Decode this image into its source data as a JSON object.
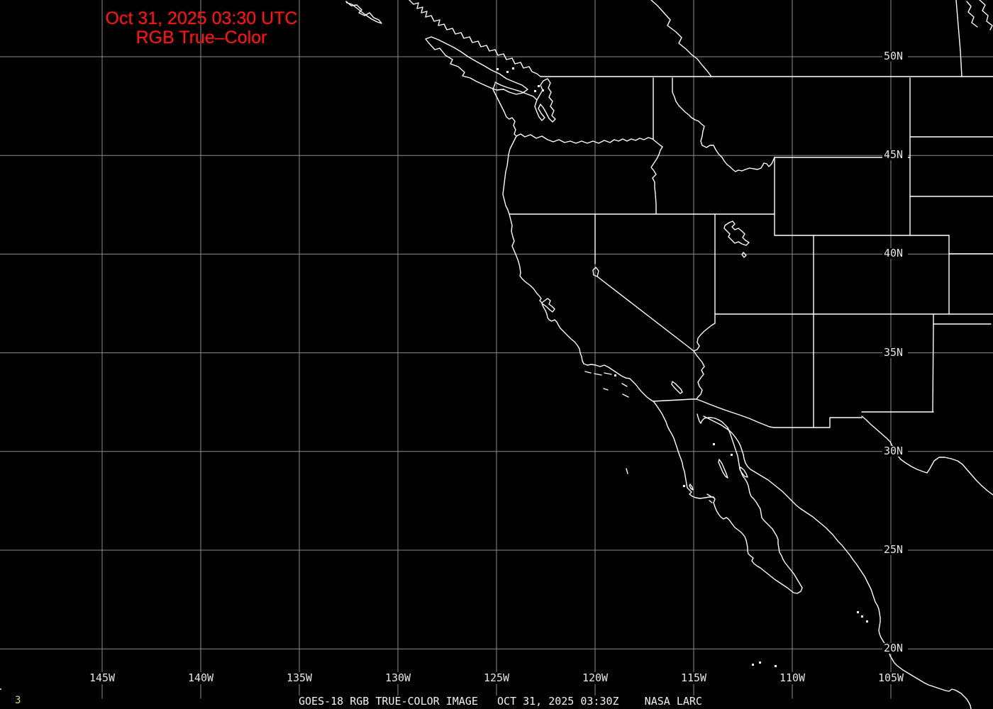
{
  "title": {
    "line1": "Oct 31, 2025 03:30 UTC",
    "line2": "RGB True–Color"
  },
  "axis": {
    "longitude_labels": [
      {
        "text": "145W",
        "deg": 145
      },
      {
        "text": "140W",
        "deg": 140
      },
      {
        "text": "135W",
        "deg": 135
      },
      {
        "text": "130W",
        "deg": 130
      },
      {
        "text": "125W",
        "deg": 125
      },
      {
        "text": "120W",
        "deg": 120
      },
      {
        "text": "115W",
        "deg": 115
      },
      {
        "text": "110W",
        "deg": 110
      },
      {
        "text": "105W",
        "deg": 105
      }
    ],
    "latitude_labels": [
      {
        "text": "50N",
        "deg": 50
      },
      {
        "text": "45N",
        "deg": 45
      },
      {
        "text": "40N",
        "deg": 40
      },
      {
        "text": "35N",
        "deg": 35
      },
      {
        "text": "30N",
        "deg": 30
      },
      {
        "text": "25N",
        "deg": 25
      },
      {
        "text": "20N",
        "deg": 20
      }
    ]
  },
  "footer": {
    "caption": "GOES-18 RGB TRUE-COLOR IMAGE   OCT 31, 2025 03:30Z    NASA LARC",
    "frame_number": "3"
  },
  "colors": {
    "background": "#000000",
    "grid": "#8e8e8e",
    "coastline": "#ffffff",
    "title": "#ee1c1c",
    "label": "#e6e6e6",
    "caption": "#f2f2f2",
    "frame_number": "#d9d98a"
  }
}
